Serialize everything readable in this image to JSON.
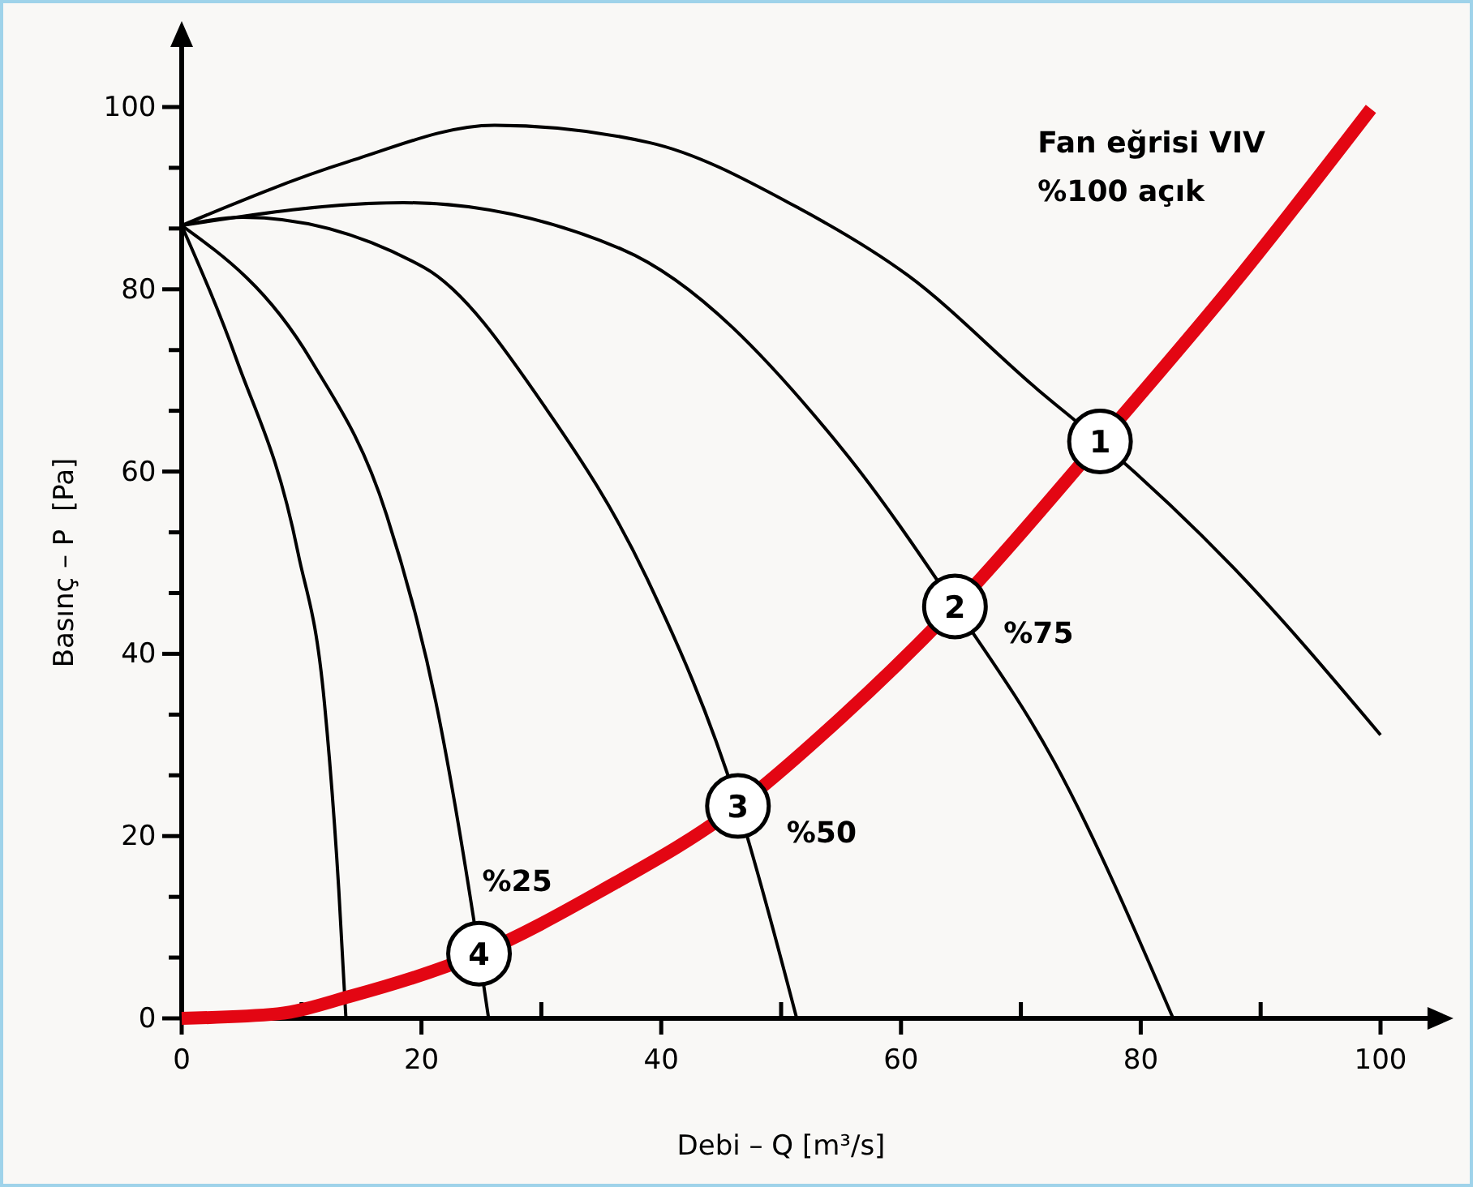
{
  "chart_data": {
    "type": "line",
    "xlabel": "Debi – Q [m³/s]",
    "ylabel": "Basınç – P  [Pa]",
    "xlim": [
      0,
      105
    ],
    "ylim": [
      0,
      108
    ],
    "xticks": [
      0,
      {
        "value": 10,
        "label": null
      },
      20,
      {
        "value": 30,
        "label": null
      },
      40,
      {
        "value": 50,
        "label": null
      },
      60,
      {
        "value": 70,
        "label": null
      },
      80,
      {
        "value": 90,
        "label": null
      },
      100
    ],
    "yticks": [
      0,
      {
        "value": 6.67,
        "label": null
      },
      {
        "value": 13.33,
        "label": null
      },
      20,
      {
        "value": 26.67,
        "label": null
      },
      {
        "value": 33.33,
        "label": null
      },
      40,
      {
        "value": 46.67,
        "label": null
      },
      {
        "value": 53.33,
        "label": null
      },
      60,
      {
        "value": 66.67,
        "label": null
      },
      {
        "value": 73.33,
        "label": null
      },
      80,
      {
        "value": 86.67,
        "label": null
      },
      {
        "value": 93.33,
        "label": null
      },
      100
    ],
    "grid": false,
    "legend": false,
    "marker": "none",
    "line_style": "solid",
    "series": [
      {
        "color": "#000000",
        "x": [
          0,
          13.9,
          26.1,
          39,
          51.2,
          60.6,
          71.4,
          76.6,
          87.7,
          100
        ],
        "values": [
          87,
          94,
          98,
          96.1,
          89.1,
          81.5,
          69,
          63.3,
          49.5,
          31.1
        ]
      },
      {
        "name": "%75",
        "color": "#000000",
        "x": [
          0,
          18.5,
          36.7,
          55.2,
          64.5,
          72.8,
          82.7
        ],
        "values": [
          87,
          89.5,
          84.4,
          62.3,
          45.2,
          28.1,
          0
        ]
      },
      {
        "name": "%50",
        "color": "#000000",
        "x": [
          0,
          5.1,
          20.2,
          30.5,
          38.8,
          46.4,
          51.3
        ],
        "values": [
          87,
          87.9,
          82.4,
          66.7,
          48.3,
          23.3,
          0
        ]
      },
      {
        "name": "%25",
        "color": "#000000",
        "x": [
          0,
          10.8,
          17.1,
          21.2,
          24.8,
          25.6
        ],
        "values": [
          87,
          72.2,
          55.2,
          34.7,
          7.1,
          0
        ]
      },
      {
        "color": "#000000",
        "x": [
          0,
          4.6,
          9.7,
          11.9,
          13.1,
          13.7
        ],
        "values": [
          87,
          72.2,
          51.1,
          34.7,
          14.2,
          0
        ]
      },
      {
        "color": "#e30613",
        "x": [
          0,
          8,
          14,
          24.8,
          35,
          46.4,
          55,
          64.5,
          76.6,
          88,
          99.2
        ],
        "values": [
          0,
          0.5,
          2.4,
          7.1,
          14,
          23.3,
          33,
          45.2,
          63.3,
          81,
          99.8
        ]
      }
    ],
    "annotations": [
      {
        "text": "1",
        "x": 76.6,
        "y": 63.3
      },
      {
        "text": "2",
        "x": 64.5,
        "y": 45.2
      },
      {
        "text": "3",
        "x": 46.4,
        "y": 23.3
      },
      {
        "text": "4",
        "x": 24.8,
        "y": 7.1
      },
      "Fan eğrisi VIV\n%100 açık"
    ]
  }
}
